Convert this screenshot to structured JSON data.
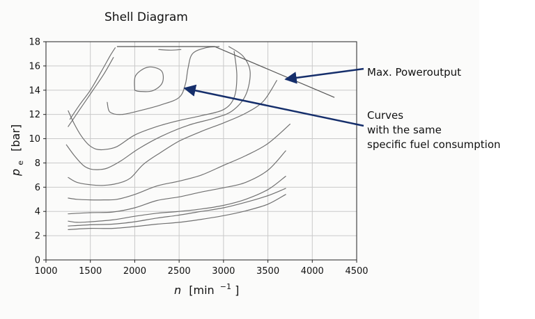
{
  "chart_data": {
    "type": "line",
    "title": "Shell Diagram",
    "xlabel_var": "n",
    "xlabel_unit": "[min",
    "xlabel_exp": "−1",
    "xlabel_close": "]",
    "ylabel_var": "p",
    "ylabel_sub": "e",
    "ylabel_unit": "[bar]",
    "xlim": [
      1000,
      4500
    ],
    "ylim": [
      0,
      18
    ],
    "x_ticks": [
      1000,
      1500,
      2000,
      2500,
      3000,
      3500,
      4000,
      4500
    ],
    "y_ticks": [
      0,
      2,
      4,
      6,
      8,
      10,
      12,
      14,
      16,
      18
    ],
    "grid": true,
    "max_power_line": {
      "name": "Max. Poweroutput",
      "x": [
        1800,
        2900,
        4250
      ],
      "y": [
        17.6,
        17.6,
        13.4
      ]
    },
    "series": [
      {
        "x": [
          1250,
          1500,
          1750,
          2000,
          2250,
          2500,
          2750,
          3000,
          3250,
          3500,
          3700
        ],
        "y": [
          2.5,
          2.6,
          2.6,
          2.75,
          2.95,
          3.1,
          3.35,
          3.65,
          4.05,
          4.6,
          5.4
        ]
      },
      {
        "x": [
          1250,
          1500,
          1750,
          2000,
          2250,
          2500,
          2750,
          3000,
          3250,
          3500,
          3700
        ],
        "y": [
          2.8,
          2.9,
          2.95,
          3.15,
          3.45,
          3.7,
          4.0,
          4.3,
          4.75,
          5.3,
          5.9
        ]
      },
      {
        "x": [
          1250,
          1350,
          1500,
          1750,
          2000,
          2250,
          2500,
          2750,
          3000,
          3250,
          3500,
          3700
        ],
        "y": [
          3.2,
          3.1,
          3.15,
          3.3,
          3.6,
          3.85,
          4.0,
          4.2,
          4.5,
          5.0,
          5.8,
          6.9
        ]
      },
      {
        "x": [
          1250,
          1500,
          1750,
          2000,
          2250,
          2500,
          2750,
          3000,
          3250,
          3500,
          3700
        ],
        "y": [
          3.8,
          3.9,
          3.95,
          4.3,
          4.9,
          5.2,
          5.6,
          5.95,
          6.4,
          7.4,
          9.0
        ]
      },
      {
        "x": [
          1250,
          1350,
          1500,
          1650,
          1800,
          2000,
          2250,
          2500,
          2750,
          3000,
          3250,
          3500,
          3750
        ],
        "y": [
          5.1,
          5.0,
          4.95,
          4.95,
          5.0,
          5.4,
          6.1,
          6.5,
          7.0,
          7.8,
          8.6,
          9.6,
          11.2
        ]
      },
      {
        "x": [
          1250,
          1350,
          1500,
          1650,
          1800,
          1950,
          2100,
          2300,
          2500,
          2750,
          3000,
          3250,
          3450,
          3600
        ],
        "y": [
          6.8,
          6.4,
          6.2,
          6.15,
          6.3,
          6.75,
          7.9,
          8.9,
          9.8,
          10.6,
          11.3,
          12.1,
          13.1,
          14.8
        ]
      },
      {
        "x": [
          1230,
          1320,
          1420,
          1500,
          1600,
          1700,
          1850,
          2050,
          2300,
          2600,
          2900,
          3100,
          3250,
          3300,
          3220,
          3060
        ],
        "y": [
          9.5,
          8.6,
          7.8,
          7.5,
          7.45,
          7.6,
          8.2,
          9.2,
          10.2,
          11.1,
          11.7,
          12.3,
          13.6,
          15.5,
          16.8,
          17.6
        ]
      },
      {
        "x": [
          1250,
          1320,
          1400,
          1480,
          1560,
          1650,
          1800,
          2000,
          2250,
          2500,
          2750,
          3000,
          3120,
          3150,
          3120
        ],
        "y": [
          12.3,
          11.2,
          10.2,
          9.5,
          9.15,
          9.1,
          9.35,
          10.3,
          11.0,
          11.5,
          11.9,
          12.4,
          13.4,
          15.2,
          17.2
        ]
      },
      {
        "x": [
          1270,
          1380,
          1500,
          1620,
          1720,
          1780
        ],
        "y": [
          11.6,
          12.8,
          14.0,
          15.5,
          16.8,
          17.5
        ]
      },
      {
        "x": [
          1250,
          1380,
          1520,
          1650,
          1760
        ],
        "y": [
          11.0,
          12.4,
          13.9,
          15.3,
          16.7
        ]
      },
      {
        "x": [
          1690,
          1720,
          1850,
          2050,
          2300,
          2500,
          2570,
          2600,
          2650,
          2800,
          2950
        ],
        "y": [
          13.0,
          12.2,
          12.0,
          12.3,
          12.8,
          13.4,
          14.5,
          15.8,
          17.0,
          17.5,
          17.6
        ]
      },
      {
        "x": [
          2000,
          2050,
          2200,
          2310,
          2300,
          2150,
          2010,
          2000
        ],
        "y": [
          14.0,
          13.9,
          13.95,
          14.6,
          15.6,
          15.9,
          15.2,
          14.0
        ]
      },
      {
        "x": [
          2270,
          2400,
          2520
        ],
        "y": [
          17.35,
          17.3,
          17.35
        ]
      }
    ]
  },
  "annotations": [
    {
      "text_lines": [
        "Max. Poweroutput"
      ],
      "arrow_target": {
        "x": 3700,
        "y": 15.2
      }
    },
    {
      "text_lines": [
        "Curves",
        "with the same",
        "specific fuel consumption"
      ],
      "arrow_target": {
        "x": 2580,
        "y": 14.2
      }
    }
  ]
}
